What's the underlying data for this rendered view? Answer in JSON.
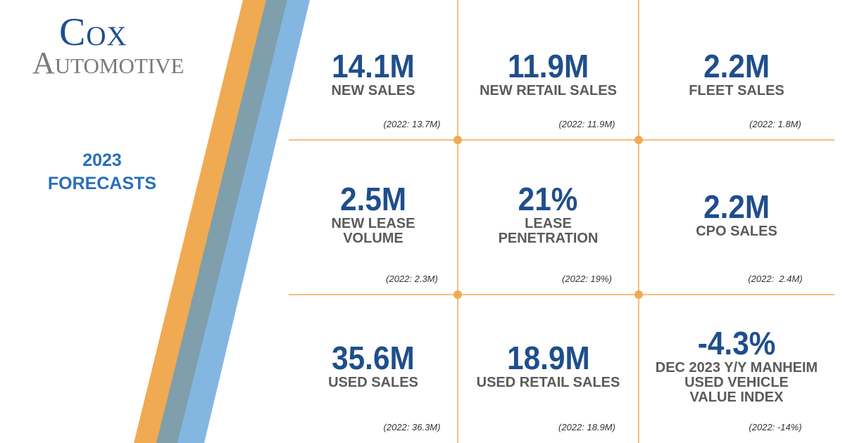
{
  "logo": {
    "line1": "Cox",
    "line2": "Automotive"
  },
  "heading": [
    "2023",
    "FORECASTS"
  ],
  "tiles": [
    {
      "value": "14.1M",
      "label": [
        "NEW SALES"
      ],
      "prior": "(2022: 13.7M)"
    },
    {
      "value": "11.9M",
      "label": [
        "NEW RETAIL SALES"
      ],
      "prior": "(2022: 11.9M)"
    },
    {
      "value": "2.2M",
      "label": [
        "FLEET SALES"
      ],
      "prior": "(2022: 1.8M)"
    },
    {
      "value": "2.5M",
      "label": [
        "NEW LEASE",
        "VOLUME"
      ],
      "prior": "(2022: 2.3M)"
    },
    {
      "value": "21%",
      "label": [
        "LEASE",
        "PENETRATION"
      ],
      "prior": "(2022: 19%)"
    },
    {
      "value": "2.2M",
      "label": [
        "CPO SALES"
      ],
      "prior": "(2022:  2.4M)"
    },
    {
      "value": "35.6M",
      "label": [
        "USED SALES"
      ],
      "prior": "(2022: 36.3M)"
    },
    {
      "value": "18.9M",
      "label": [
        "USED RETAIL SALES"
      ],
      "prior": "(2022: 18.9M)"
    },
    {
      "value": "-4.3%",
      "label": [
        "DEC 2023 Y/Y MANHEIM",
        "USED VEHICLE",
        "VALUE INDEX"
      ],
      "prior": "(2022: -14%)"
    }
  ]
}
